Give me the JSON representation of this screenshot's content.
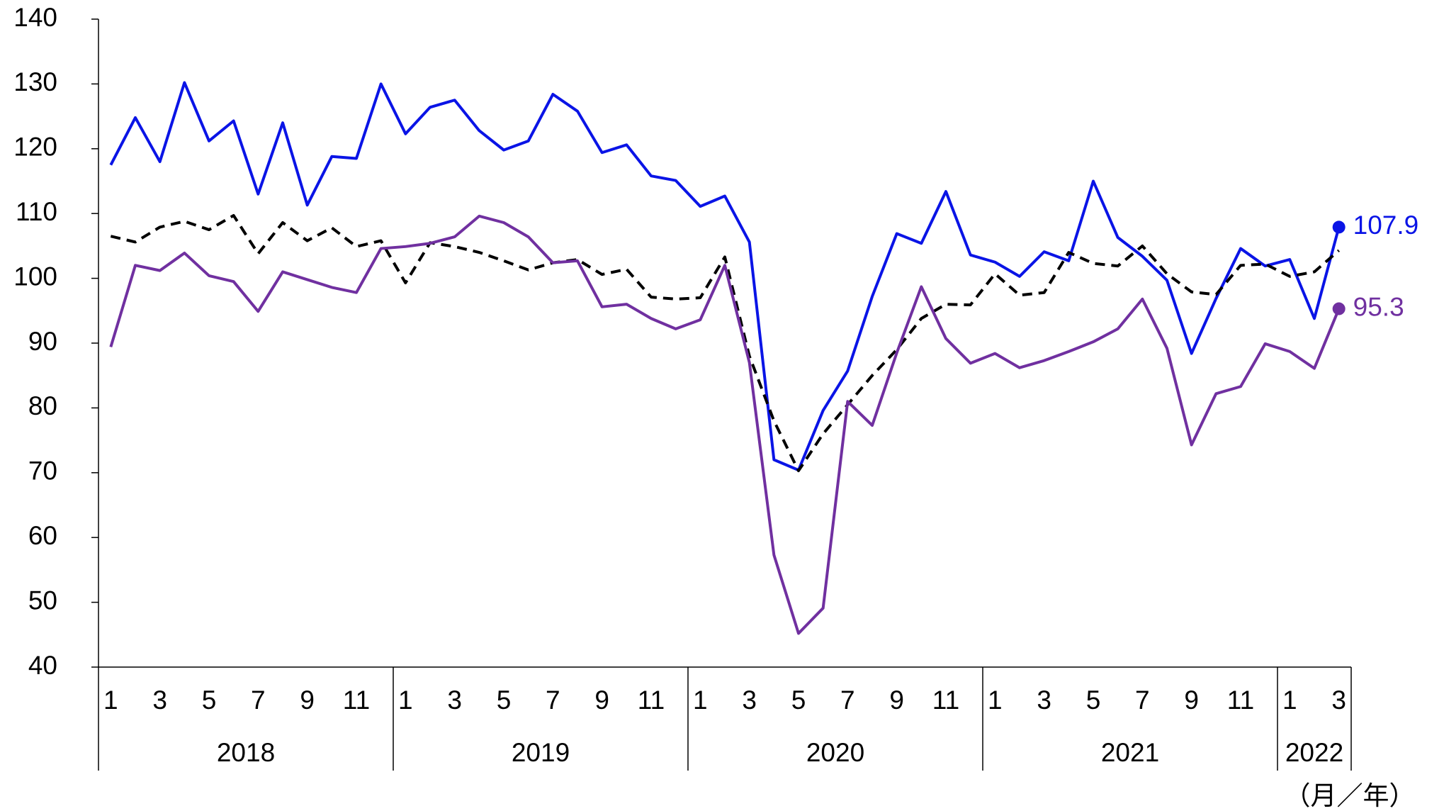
{
  "chart_data": {
    "type": "line",
    "categories": [
      "1",
      null,
      "3",
      null,
      "5",
      null,
      "7",
      null,
      "9",
      null,
      "11",
      null,
      "1",
      null,
      "3",
      null,
      "5",
      null,
      "7",
      null,
      "9",
      null,
      "11",
      null,
      "1",
      null,
      "3",
      null,
      "5",
      null,
      "7",
      null,
      "9",
      null,
      "11",
      null,
      "1",
      null,
      "3",
      null,
      "5",
      null,
      "7",
      null,
      "9",
      null,
      "11",
      null,
      "1",
      null,
      "3"
    ],
    "year_groups": [
      {
        "label": "2018",
        "start": 0,
        "count": 12
      },
      {
        "label": "2019",
        "start": 12,
        "count": 12
      },
      {
        "label": "2020",
        "start": 24,
        "count": 12
      },
      {
        "label": "2021",
        "start": 36,
        "count": 12
      },
      {
        "label": "2022",
        "start": 48,
        "count": 3
      }
    ],
    "x_unit_label": "（月／年）",
    "ylim": [
      40,
      140
    ],
    "yticks": [
      40,
      50,
      60,
      70,
      80,
      90,
      100,
      110,
      120,
      130,
      140
    ],
    "grid": false,
    "series": [
      {
        "color": "#0a14e6",
        "dash": false,
        "end_marker": true,
        "values": [
          117.5,
          124.8,
          118,
          130.2,
          121.2,
          124.3,
          113,
          124,
          111.3,
          118.8,
          118.5,
          130,
          122.3,
          126.4,
          127.5,
          122.8,
          119.8,
          121.2,
          128.4,
          125.8,
          119.4,
          120.6,
          115.8,
          115.1,
          111.1,
          112.7,
          105.6,
          72,
          70.4,
          79.6,
          85.7,
          97.2,
          106.9,
          105.4,
          113.4,
          103.6,
          102.5,
          100.3,
          104.1,
          102.7,
          115,
          106.3,
          103.4,
          99.7,
          88.4,
          96.9,
          104.6,
          101.9,
          102.9,
          93.8,
          107.9
        ],
        "value_labels": [
          null,
          null,
          null,
          null,
          null,
          null,
          null,
          null,
          null,
          null,
          null,
          null,
          null,
          null,
          null,
          null,
          null,
          null,
          null,
          null,
          null,
          null,
          null,
          null,
          null,
          null,
          null,
          null,
          null,
          null,
          null,
          null,
          null,
          null,
          null,
          null,
          null,
          null,
          null,
          null,
          null,
          null,
          null,
          null,
          null,
          null,
          null,
          null,
          null,
          null,
          "107.9"
        ]
      },
      {
        "color": "#000000",
        "dash": true,
        "end_marker": false,
        "values": [
          106.5,
          105.6,
          107.9,
          108.8,
          107.5,
          109.7,
          103.8,
          108.6,
          105.8,
          107.8,
          104.9,
          105.8,
          99.3,
          105.5,
          104.9,
          104,
          102.7,
          101.3,
          102.4,
          102.9,
          100.6,
          101.4,
          97.1,
          96.8,
          97,
          103.3,
          88,
          78,
          70.3,
          76,
          80.5,
          85,
          89,
          93.8,
          96,
          95.9,
          100.7,
          97.4,
          97.8,
          104,
          102.3,
          101.9,
          105,
          100.7,
          97.9,
          97.5,
          102,
          102.2,
          100.3,
          101,
          104.3
        ]
      },
      {
        "color": "#7030a0",
        "dash": false,
        "end_marker": true,
        "values": [
          89.4,
          102,
          101.2,
          103.9,
          100.4,
          99.5,
          94.9,
          101,
          99.8,
          98.6,
          97.8,
          104.6,
          104.9,
          105.4,
          106.4,
          109.6,
          108.6,
          106.4,
          102.4,
          102.7,
          95.6,
          96,
          93.8,
          92.2,
          93.6,
          102,
          87,
          57.3,
          45.2,
          49.1,
          81,
          77.3,
          88.5,
          98.7,
          90.7,
          86.9,
          88.4,
          86.2,
          87.3,
          88.7,
          90.2,
          92.2,
          96.8,
          89.2,
          74.3,
          82.2,
          83.3,
          89.9,
          88.7,
          86.1,
          95.3
        ],
        "value_labels": [
          null,
          null,
          null,
          null,
          null,
          null,
          null,
          null,
          null,
          null,
          null,
          null,
          null,
          null,
          null,
          null,
          null,
          null,
          null,
          null,
          null,
          null,
          null,
          null,
          null,
          null,
          null,
          null,
          null,
          null,
          null,
          null,
          null,
          null,
          null,
          null,
          null,
          null,
          null,
          null,
          null,
          null,
          null,
          null,
          null,
          null,
          null,
          null,
          null,
          null,
          "95.3"
        ]
      }
    ]
  }
}
